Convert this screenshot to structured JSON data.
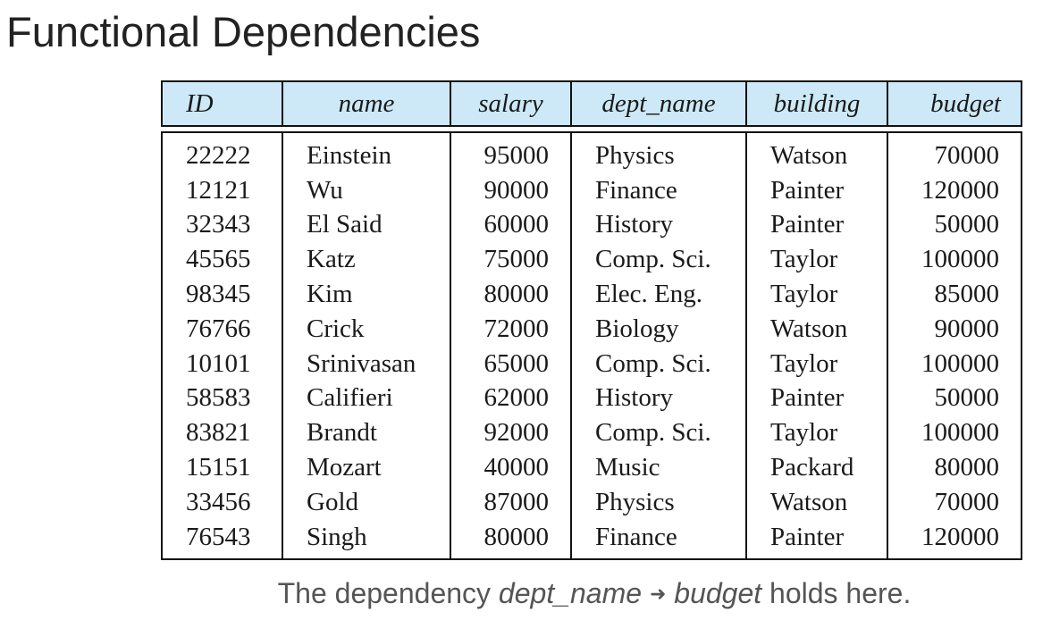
{
  "page": {
    "title": "Functional Dependencies"
  },
  "table": {
    "headers": [
      "ID",
      "name",
      "salary",
      "dept_name",
      "building",
      "budget"
    ],
    "rows": [
      [
        "22222",
        "Einstein",
        "95000",
        "Physics",
        "Watson",
        "70000"
      ],
      [
        "12121",
        "Wu",
        "90000",
        "Finance",
        "Painter",
        "120000"
      ],
      [
        "32343",
        "El Said",
        "60000",
        "History",
        "Painter",
        "50000"
      ],
      [
        "45565",
        "Katz",
        "75000",
        "Comp. Sci.",
        "Taylor",
        "100000"
      ],
      [
        "98345",
        "Kim",
        "80000",
        "Elec. Eng.",
        "Taylor",
        "85000"
      ],
      [
        "76766",
        "Crick",
        "72000",
        "Biology",
        "Watson",
        "90000"
      ],
      [
        "10101",
        "Srinivasan",
        "65000",
        "Comp. Sci.",
        "Taylor",
        "100000"
      ],
      [
        "58583",
        "Califieri",
        "62000",
        "History",
        "Painter",
        "50000"
      ],
      [
        "83821",
        "Brandt",
        "92000",
        "Comp. Sci.",
        "Taylor",
        "100000"
      ],
      [
        "15151",
        "Mozart",
        "40000",
        "Music",
        "Packard",
        "80000"
      ],
      [
        "33456",
        "Gold",
        "87000",
        "Physics",
        "Watson",
        "70000"
      ],
      [
        "76543",
        "Singh",
        "80000",
        "Finance",
        "Painter",
        "120000"
      ]
    ]
  },
  "caption": {
    "prefix": "The dependency ",
    "lhs": "dept_name",
    "arrow": "➜",
    "rhs": "budget",
    "suffix": " holds here."
  },
  "colors": {
    "header_bg": "#cde9f7",
    "border": "#111111",
    "caption_text": "#555555"
  }
}
